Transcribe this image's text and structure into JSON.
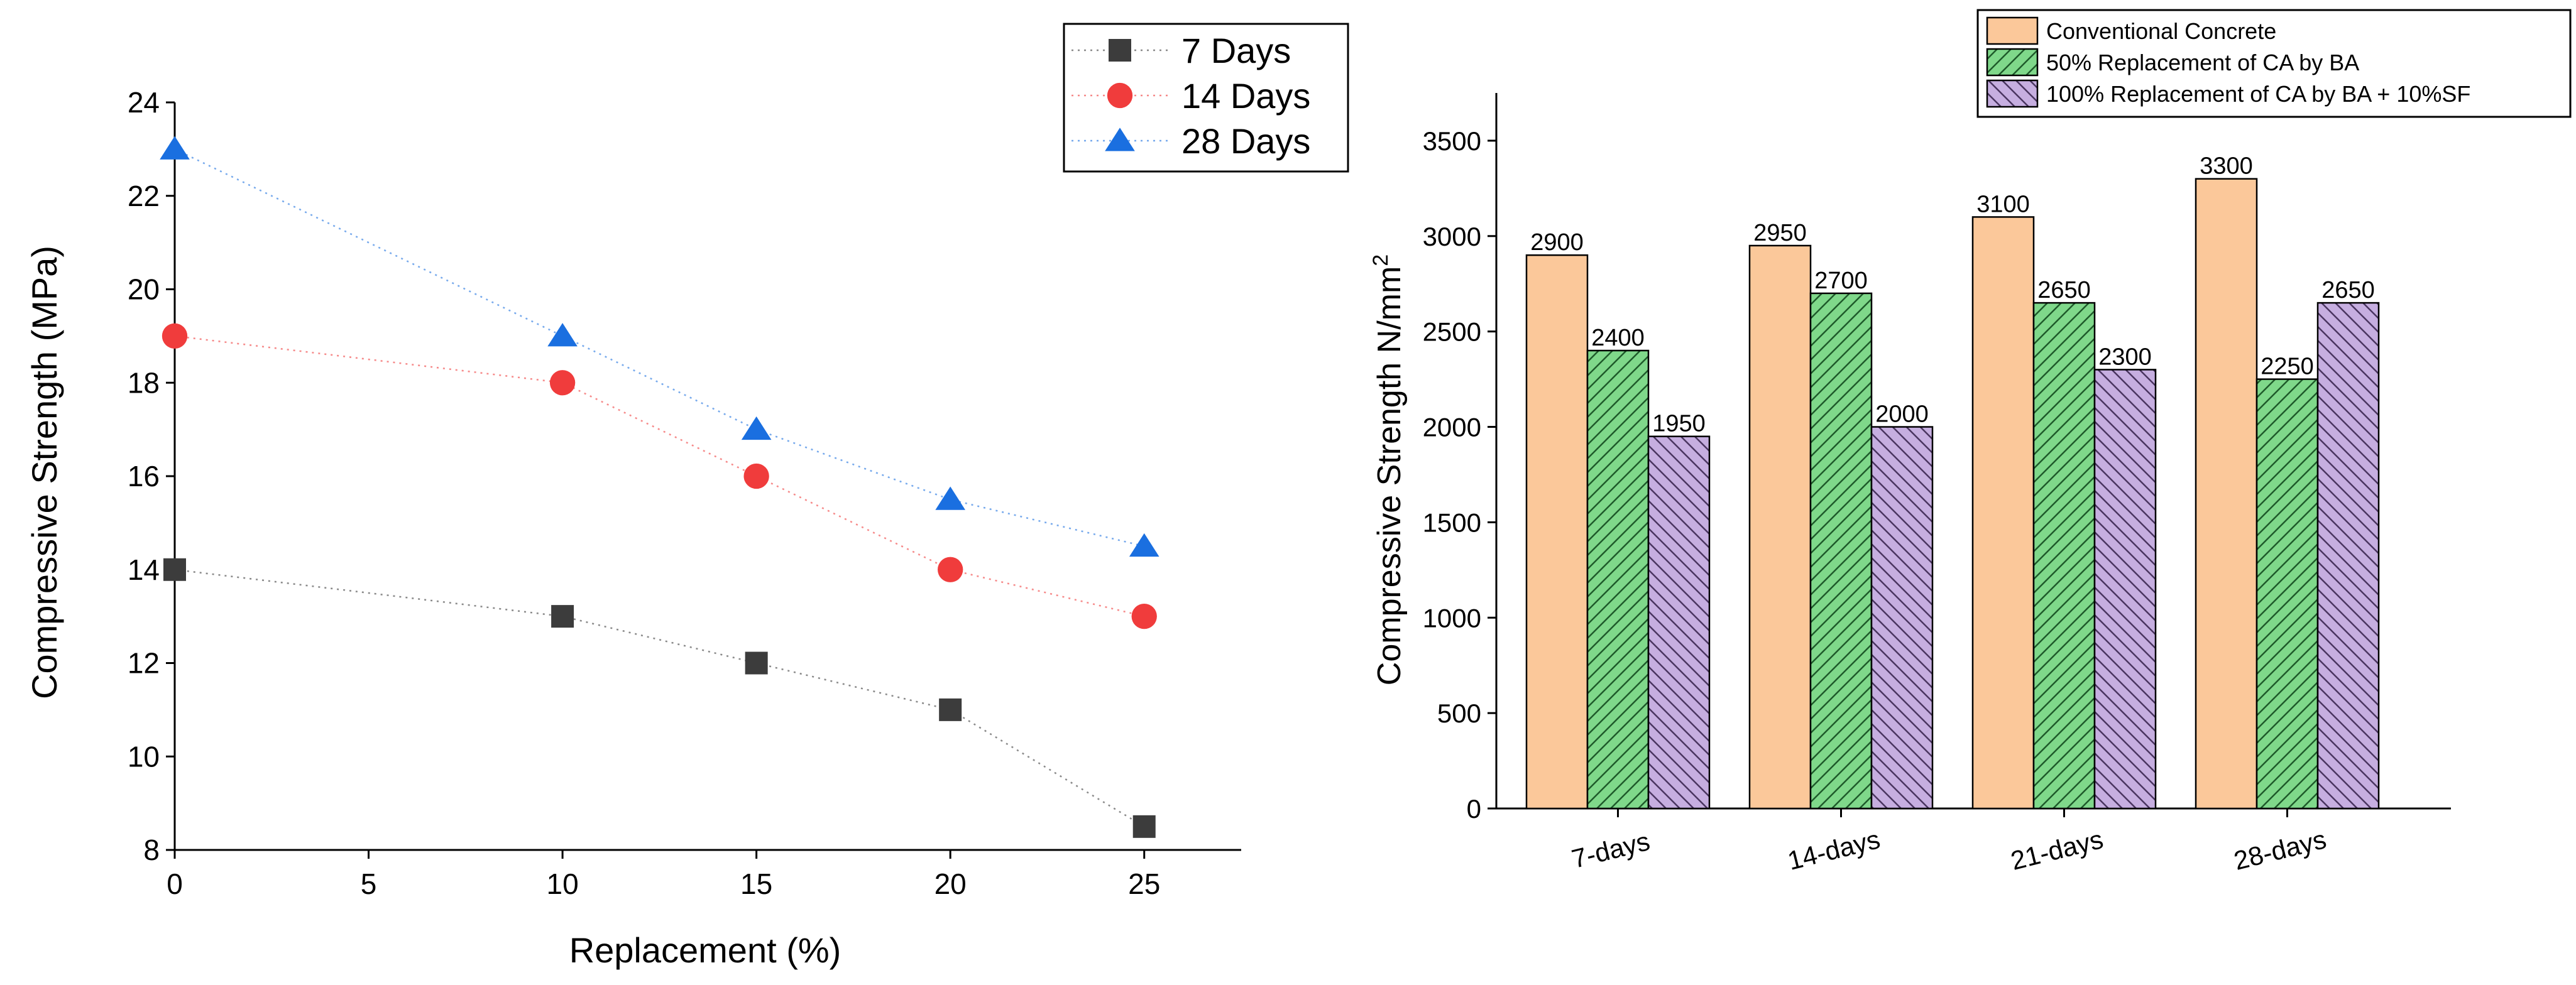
{
  "chart_data": [
    {
      "type": "line",
      "title": "",
      "xlabel": "Replacement (%)",
      "ylabel": "Compressive Strength (MPa)",
      "xlim": [
        0,
        27.5
      ],
      "ylim": [
        8,
        24
      ],
      "xticks": [
        0,
        5,
        10,
        15,
        20,
        25
      ],
      "yticks": [
        8,
        10,
        12,
        14,
        16,
        18,
        20,
        22,
        24
      ],
      "x": [
        0,
        10,
        15,
        20,
        25
      ],
      "series": [
        {
          "name": "7 Days",
          "values": [
            14,
            13,
            12,
            11,
            8.5
          ],
          "color": "#3c3c3c",
          "marker": "square"
        },
        {
          "name": "14 Days",
          "values": [
            19,
            18,
            16,
            14,
            13
          ],
          "color": "#f03c3c",
          "marker": "circle"
        },
        {
          "name": "28 Days",
          "values": [
            23,
            19,
            17,
            15.5,
            14.5
          ],
          "color": "#1a6fe0",
          "marker": "triangle"
        }
      ],
      "legend": "top-right",
      "grid": false
    },
    {
      "type": "bar",
      "title": "",
      "xlabel": "",
      "ylabel": "Compressive Strength N/mm",
      "ylabel_sup": "2",
      "ylim": [
        0,
        3750
      ],
      "yticks": [
        0,
        500,
        1000,
        1500,
        2000,
        2500,
        3000,
        3500
      ],
      "categories": [
        "7-days",
        "14-days",
        "21-days",
        "28-days"
      ],
      "series": [
        {
          "name": "Conventional Concrete",
          "values": [
            2900,
            2950,
            3100,
            3300
          ],
          "color": "#fbc89a",
          "pattern": "none"
        },
        {
          "name": "50% Replacement of CA by BA",
          "values": [
            2400,
            2700,
            2650,
            2250
          ],
          "color": "#7fd88a",
          "pattern": "forward-hatch"
        },
        {
          "name": "100% Replacement of CA by BA + 10%SF",
          "values": [
            1950,
            2000,
            2300,
            2650
          ],
          "color": "#c6aee0",
          "pattern": "backward-hatch"
        }
      ],
      "legend": "top-right",
      "grid": false
    }
  ]
}
